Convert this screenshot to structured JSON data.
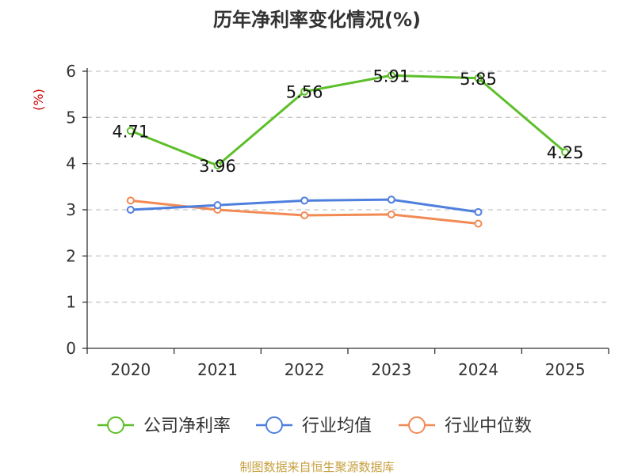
{
  "chart_data": {
    "type": "line",
    "title": "历年净利率变化情况(%)",
    "ylabel": "(%)",
    "xlabel": "",
    "ylim": [
      0,
      6
    ],
    "yticks": [
      "0",
      "1",
      "2",
      "3",
      "4",
      "5",
      "6"
    ],
    "categories": [
      "2020",
      "2021",
      "2022",
      "2023",
      "2024",
      "2025"
    ],
    "grid": true,
    "legend_position": "bottom",
    "series": [
      {
        "name": "公司净利率",
        "color": "#5cbf2a",
        "values": [
          4.71,
          3.96,
          5.56,
          5.91,
          5.85,
          4.25
        ],
        "labels": [
          "4.71",
          "3.96",
          "5.56",
          "5.91",
          "5.85",
          "4.25"
        ]
      },
      {
        "name": "行业均值",
        "color": "#4f7fde",
        "values": [
          3.0,
          3.1,
          3.2,
          3.22,
          2.95,
          null
        ]
      },
      {
        "name": "行业中位数",
        "color": "#f28a55",
        "values": [
          3.2,
          3.0,
          2.88,
          2.9,
          2.7,
          null
        ]
      }
    ],
    "source": "制图数据来自恒生聚源数据库"
  }
}
